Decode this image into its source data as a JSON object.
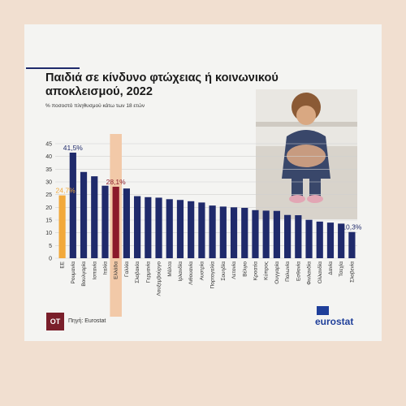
{
  "header": {
    "title": "Παιδιά σε κίνδυνο φτώχειας ή κοινωνικού αποκλεισμού, 2022",
    "subtitle": "% ποσοστό πληθυσμού κάτω των 18 ετών"
  },
  "footer": {
    "logo_text": "OT",
    "source": "Πηγή: Eurostat",
    "brand": "eurostat"
  },
  "colors": {
    "bar": "#1f2a6b",
    "eu_bar": "#f2a93b",
    "greece_bar": "#8b1a2b",
    "greece_highlight": "#f2c9a8",
    "background": "#f1dfd0"
  },
  "chart_data": {
    "type": "bar",
    "categories": [
      "ΕΕ",
      "Ρουμανία",
      "Βουλγαρία",
      "Ισπανία",
      "Ιταλία",
      "Ελλάδα",
      "Γαλλία",
      "Σλοβακία",
      "Γερμανία",
      "Λουξεμβούργο",
      "Μάλτα",
      "Ιρλανδία",
      "Λιθουανία",
      "Αυστρία",
      "Πορτογαλία",
      "Σουηδία",
      "Λετονία",
      "Βέλγιο",
      "Κροατία",
      "Κύπρος",
      "Ουγγαρία",
      "Πολωνία",
      "Εσθονία",
      "Φινλανδία",
      "Ολλανδία",
      "Δανία",
      "Τσεχία",
      "Σλοβενία"
    ],
    "values": [
      24.7,
      41.5,
      33.9,
      32.2,
      28.5,
      28.1,
      27.4,
      24.4,
      24.0,
      23.8,
      23.2,
      22.9,
      22.4,
      21.9,
      20.7,
      20.3,
      20.0,
      19.8,
      18.9,
      18.7,
      18.6,
      17.0,
      16.9,
      15.1,
      14.4,
      14.0,
      13.6,
      10.3
    ],
    "data_labels": [
      {
        "category": "ΕΕ",
        "text": "24,7%"
      },
      {
        "category": "Ρουμανία",
        "text": "41,5%"
      },
      {
        "category": "Ελλάδα",
        "text": "28,1%"
      },
      {
        "category": "Σλοβενία",
        "text": "10,3%"
      }
    ],
    "ylim": [
      0,
      45
    ],
    "yticks": [
      0,
      5,
      10,
      15,
      20,
      25,
      30,
      35,
      40,
      45
    ],
    "grid": true
  }
}
